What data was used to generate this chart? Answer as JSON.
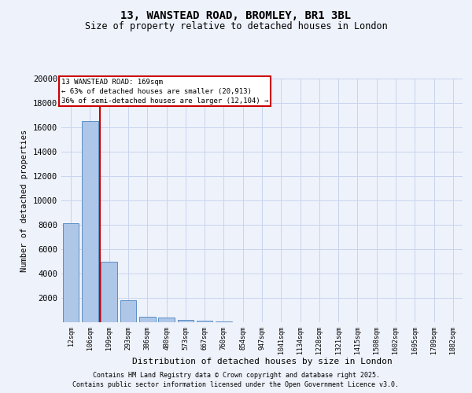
{
  "title1": "13, WANSTEAD ROAD, BROMLEY, BR1 3BL",
  "title2": "Size of property relative to detached houses in London",
  "xlabel": "Distribution of detached houses by size in London",
  "ylabel": "Number of detached properties",
  "bar_labels": [
    "12sqm",
    "106sqm",
    "199sqm",
    "293sqm",
    "386sqm",
    "480sqm",
    "573sqm",
    "667sqm",
    "760sqm",
    "854sqm",
    "947sqm",
    "1041sqm",
    "1134sqm",
    "1228sqm",
    "1321sqm",
    "1415sqm",
    "1508sqm",
    "1602sqm",
    "1695sqm",
    "1789sqm",
    "1882sqm"
  ],
  "bar_values": [
    8100,
    16500,
    5000,
    1800,
    420,
    360,
    210,
    155,
    90,
    0,
    0,
    0,
    0,
    0,
    0,
    0,
    0,
    0,
    0,
    0,
    0
  ],
  "bar_color": "#aec6e8",
  "bar_edge_color": "#5a8fc4",
  "vline_x": 1.5,
  "vline_color": "#cc0000",
  "ylim": [
    0,
    20000
  ],
  "yticks": [
    0,
    2000,
    4000,
    6000,
    8000,
    10000,
    12000,
    14000,
    16000,
    18000,
    20000
  ],
  "annotation_text": "13 WANSTEAD ROAD: 169sqm\n← 63% of detached houses are smaller (20,913)\n36% of semi-detached houses are larger (12,104) →",
  "annotation_box_color": "#cc0000",
  "footer1": "Contains HM Land Registry data © Crown copyright and database right 2025.",
  "footer2": "Contains public sector information licensed under the Open Government Licence v3.0.",
  "bg_color": "#eef2fb",
  "grid_color": "#c8d4ee"
}
